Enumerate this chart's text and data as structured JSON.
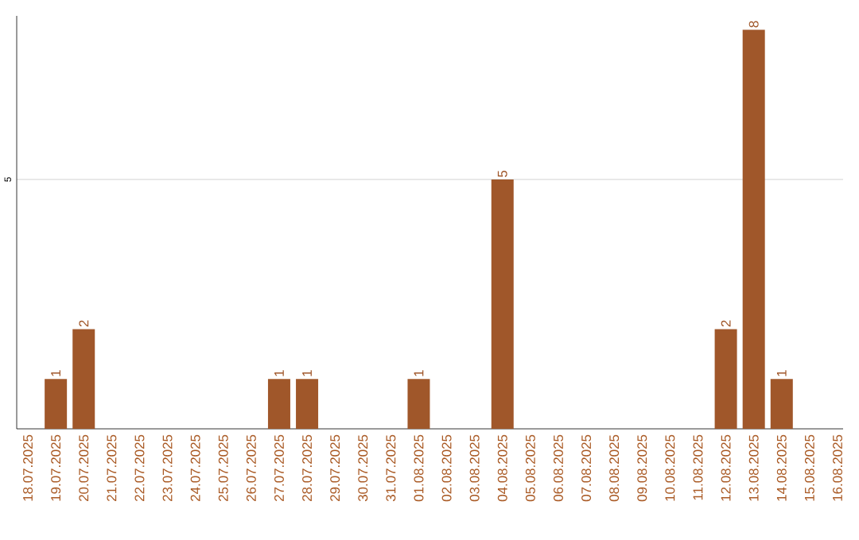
{
  "chart_data": {
    "type": "bar",
    "categories": [
      "18.07.2025",
      "19.07.2025",
      "20.07.2025",
      "21.07.2025",
      "22.07.2025",
      "23.07.2025",
      "24.07.2025",
      "25.07.2025",
      "26.07.2025",
      "27.07.2025",
      "28.07.2025",
      "29.07.2025",
      "30.07.2025",
      "31.07.2025",
      "01.08.2025",
      "02.08.2025",
      "03.08.2025",
      "04.08.2025",
      "05.08.2025",
      "06.08.2025",
      "07.08.2025",
      "08.08.2025",
      "09.08.2025",
      "10.08.2025",
      "11.08.2025",
      "12.08.2025",
      "13.08.2025",
      "14.08.2025",
      "15.08.2025",
      "16.08.2025"
    ],
    "values": [
      0,
      1,
      2,
      0,
      0,
      0,
      0,
      0,
      0,
      1,
      1,
      0,
      0,
      0,
      1,
      0,
      0,
      5,
      0,
      0,
      0,
      0,
      0,
      0,
      0,
      2,
      8,
      1,
      0,
      0
    ],
    "value_labels": [
      null,
      "1",
      "2",
      null,
      null,
      null,
      null,
      null,
      null,
      "1",
      "1",
      null,
      null,
      null,
      "1",
      null,
      null,
      "5",
      null,
      null,
      null,
      null,
      null,
      null,
      null,
      "2",
      "8",
      "1",
      null,
      null
    ],
    "color": "#a0572a",
    "ylim": [
      0,
      8.28
    ],
    "yticks": [
      5
    ],
    "grid": "y"
  }
}
